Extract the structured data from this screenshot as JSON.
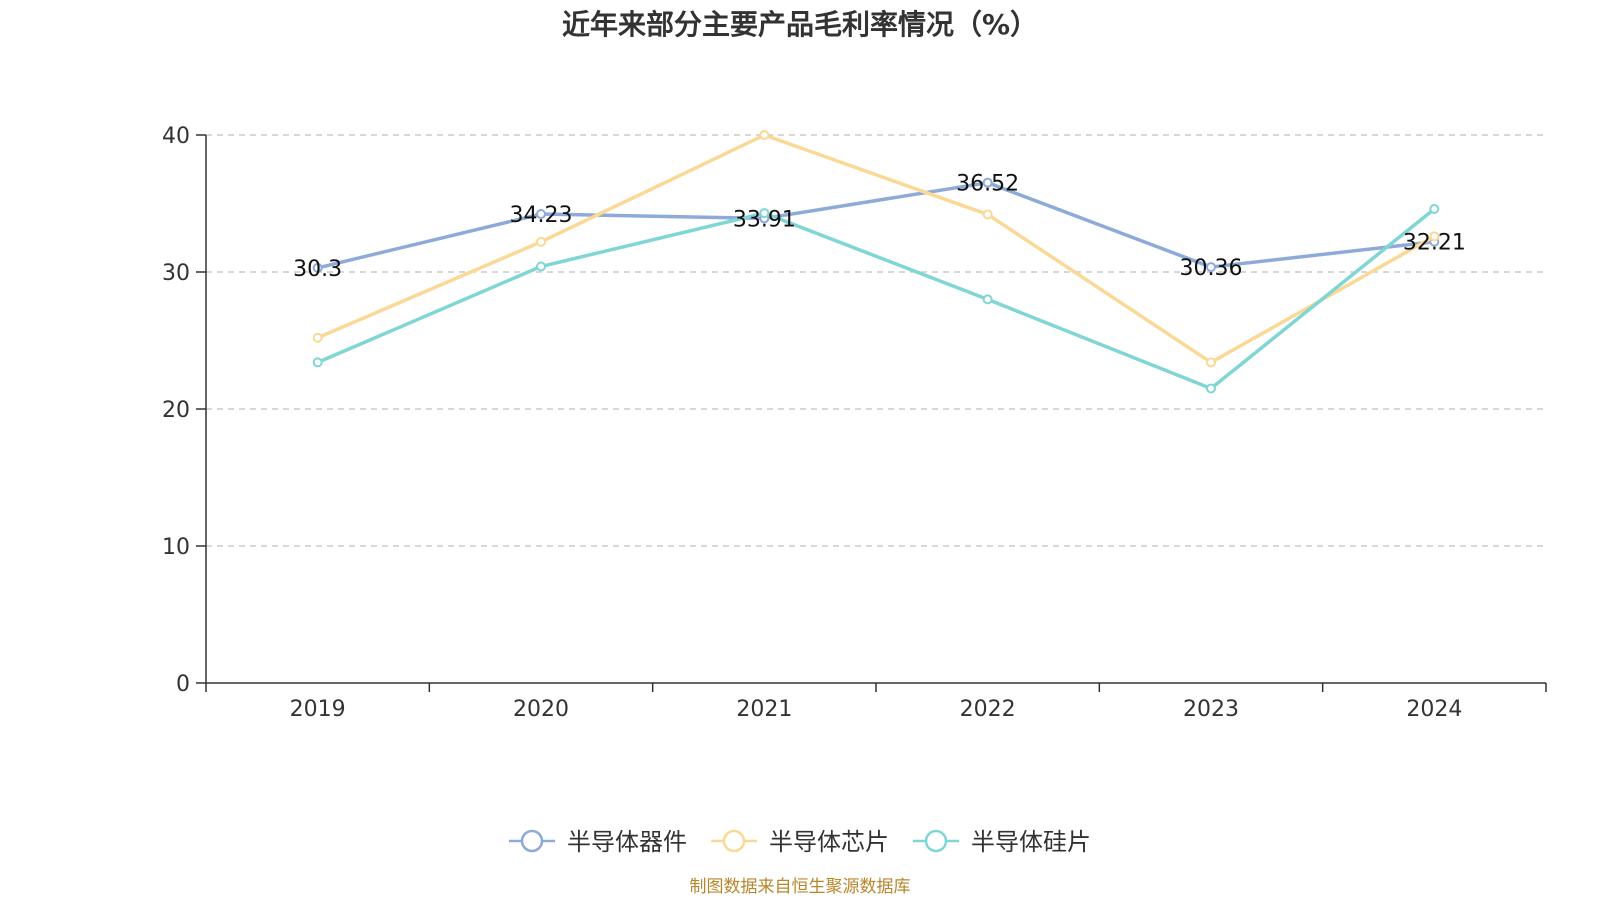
{
  "source_note": "制图数据来自恒生聚源数据库",
  "chart_data": {
    "type": "line",
    "title": "近年来部分主要产品毛利率情况（%）",
    "xlabel": "",
    "ylabel": "",
    "categories": [
      "2019",
      "2020",
      "2021",
      "2022",
      "2023",
      "2024"
    ],
    "ylim": [
      0,
      40
    ],
    "yticks": [
      "0",
      "10",
      "20",
      "30",
      "40"
    ],
    "grid": true,
    "legend_position": "bottom",
    "series": [
      {
        "name": "半导体器件",
        "color": "#8eaad8",
        "values": [
          30.3,
          34.23,
          33.91,
          36.52,
          30.36,
          32.21
        ],
        "labels": [
          "30.3",
          "34.23",
          "33.91",
          "36.52",
          "30.36",
          "32.21"
        ]
      },
      {
        "name": "半导体芯片",
        "color": "#fad996",
        "values": [
          25.2,
          32.2,
          40.0,
          34.2,
          23.4,
          32.6
        ],
        "labels": []
      },
      {
        "name": "半导体硅片",
        "color": "#80d5d5",
        "values": [
          23.4,
          30.4,
          34.3,
          28.0,
          21.5,
          34.6
        ],
        "labels": []
      }
    ]
  }
}
